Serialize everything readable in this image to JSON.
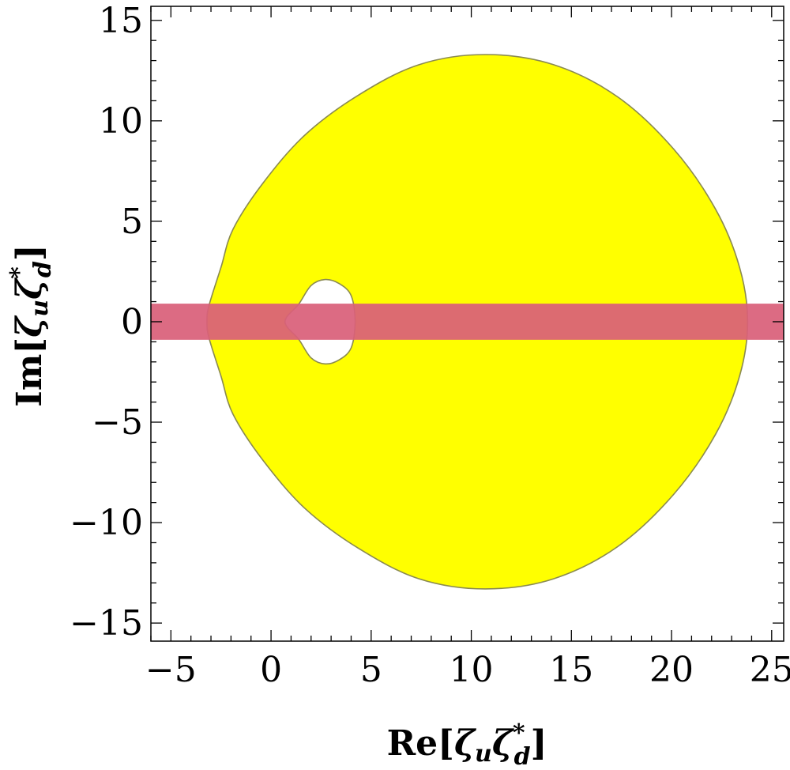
{
  "chart_data": {
    "type": "area",
    "xlabel": "Re[ζuζ*d]",
    "ylabel": "Im[ζuζ*d]",
    "xlim": [
      -6,
      25.6
    ],
    "ylim": [
      -15.9,
      15.7
    ],
    "x_ticks": [
      -5,
      0,
      5,
      10,
      15,
      20,
      25
    ],
    "y_ticks": [
      -15,
      -10,
      -5,
      0,
      5,
      10,
      15
    ],
    "x_tick_labels": [
      "−5",
      "0",
      "5",
      "10",
      "15",
      "20",
      "25"
    ],
    "y_tick_labels": [
      "−15",
      "−10",
      "−5",
      "0",
      "5",
      "10",
      "15"
    ],
    "grid": false,
    "series": [
      {
        "kind": "allowed-region",
        "color": "#ffff00",
        "edge_color": "#8a8a50",
        "outer_boundary": [
          [
            10.7,
            13.3
          ],
          [
            14.1,
            12.8
          ],
          [
            17.3,
            11.2
          ],
          [
            20.1,
            8.6
          ],
          [
            22.2,
            5.6
          ],
          [
            23.4,
            2.7
          ],
          [
            23.8,
            0
          ],
          [
            23.4,
            -2.7
          ],
          [
            22.2,
            -5.6
          ],
          [
            20.1,
            -8.6
          ],
          [
            17.3,
            -11.2
          ],
          [
            14.1,
            -12.8
          ],
          [
            10.7,
            -13.3
          ],
          [
            7.4,
            -12.8
          ],
          [
            4.4,
            -11.3
          ],
          [
            1.7,
            -9.3
          ],
          [
            -0.4,
            -6.9
          ],
          [
            -1.9,
            -4.6
          ],
          [
            -2.5,
            -2.7
          ],
          [
            -3.1,
            -0.8
          ],
          [
            -3.2,
            0
          ],
          [
            -3.1,
            0.8
          ],
          [
            -2.5,
            2.7
          ],
          [
            -1.9,
            4.6
          ],
          [
            -0.4,
            6.9
          ],
          [
            1.7,
            9.3
          ],
          [
            4.4,
            11.3
          ],
          [
            7.4,
            12.8
          ]
        ],
        "hole_boundary": [
          [
            0.7,
            0
          ],
          [
            1.4,
            0.9
          ],
          [
            2.0,
            1.8
          ],
          [
            2.7,
            2.1
          ],
          [
            3.4,
            1.9
          ],
          [
            4.0,
            1.3
          ],
          [
            4.2,
            0
          ],
          [
            4.0,
            -1.3
          ],
          [
            3.4,
            -1.9
          ],
          [
            2.7,
            -2.1
          ],
          [
            2.0,
            -1.8
          ],
          [
            1.4,
            -0.9
          ]
        ]
      },
      {
        "kind": "band",
        "color": "#d9607a",
        "opacity": 0.93,
        "y_range": [
          -0.9,
          0.9
        ]
      }
    ]
  }
}
